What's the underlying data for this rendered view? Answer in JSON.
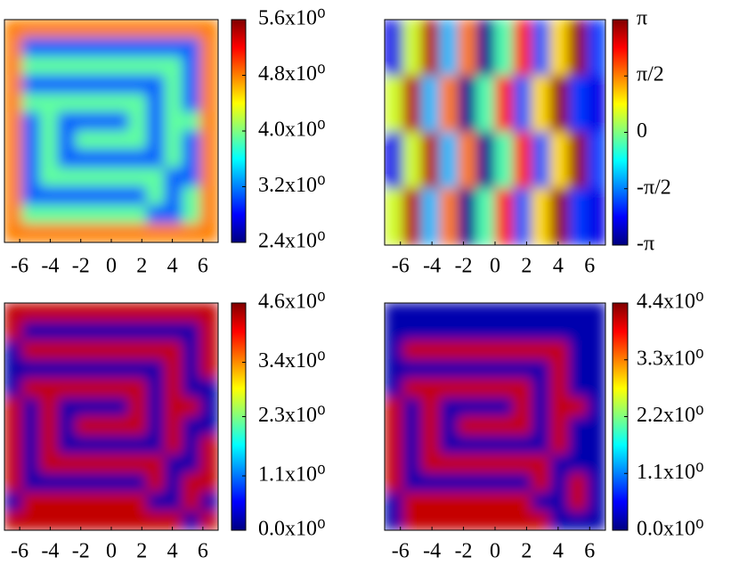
{
  "chart_data": [
    {
      "type": "heatmap",
      "xlim": [
        -7,
        7
      ],
      "xticks": [
        -6,
        -4,
        -2,
        0,
        2,
        4,
        6
      ],
      "clim": [
        2.4,
        5.6
      ],
      "cticks": [
        {
          "value": 2.4,
          "label": "2.4x10⁰"
        },
        {
          "value": 3.2,
          "label": "3.2x10⁰"
        },
        {
          "value": 4.0,
          "label": "4.0x10⁰"
        },
        {
          "value": 4.8,
          "label": "4.8x10⁰"
        },
        {
          "value": 5.6,
          "label": "5.6x10⁰"
        }
      ],
      "z": [
        [
          4.8,
          4.8,
          4.8,
          4.8,
          4.8,
          4.8,
          4.8,
          4.8,
          4.8,
          4.8,
          4.8,
          4.8
        ],
        [
          4.8,
          3.1,
          3.1,
          3.1,
          3.1,
          3.1,
          3.1,
          3.1,
          3.1,
          3.1,
          3.1,
          4.8
        ],
        [
          4.8,
          3.9,
          3.9,
          3.9,
          3.9,
          3.9,
          3.9,
          3.9,
          3.9,
          3.9,
          3.1,
          4.8
        ],
        [
          4.8,
          3.1,
          3.1,
          3.1,
          3.1,
          3.1,
          3.1,
          3.1,
          3.1,
          3.9,
          3.1,
          4.8
        ],
        [
          4.8,
          3.9,
          3.9,
          3.9,
          3.9,
          3.9,
          3.9,
          3.9,
          3.1,
          3.9,
          3.1,
          4.8
        ],
        [
          4.8,
          3.1,
          3.9,
          3.1,
          3.1,
          3.1,
          3.1,
          3.9,
          3.1,
          3.9,
          3.9,
          4.8
        ],
        [
          4.8,
          3.1,
          3.9,
          3.1,
          3.9,
          3.9,
          3.9,
          3.9,
          3.1,
          3.9,
          3.1,
          4.8
        ],
        [
          4.8,
          3.1,
          3.9,
          3.1,
          3.1,
          3.1,
          3.1,
          3.1,
          3.1,
          3.9,
          3.1,
          4.8
        ],
        [
          4.8,
          3.1,
          3.9,
          3.9,
          3.9,
          3.9,
          3.9,
          3.9,
          3.9,
          3.1,
          3.1,
          4.8
        ],
        [
          4.8,
          3.1,
          3.1,
          3.1,
          3.1,
          3.1,
          3.1,
          3.1,
          3.9,
          3.1,
          3.9,
          4.8
        ],
        [
          4.8,
          3.9,
          3.9,
          3.9,
          3.9,
          3.9,
          3.9,
          3.9,
          3.1,
          3.1,
          3.9,
          4.8
        ],
        [
          4.8,
          4.8,
          4.8,
          4.8,
          4.8,
          4.8,
          4.8,
          4.8,
          4.8,
          4.8,
          4.8,
          4.8
        ]
      ]
    },
    {
      "type": "heatmap",
      "xlim": [
        -7,
        7
      ],
      "xticks": [
        -6,
        -4,
        -2,
        0,
        2,
        4,
        6
      ],
      "clim": [
        -3.14159,
        3.14159
      ],
      "cticks": [
        {
          "value": -3.14159,
          "label": "-π"
        },
        {
          "value": -1.5708,
          "label": "-π/2"
        },
        0,
        {
          "value": 1.5708,
          "label": "π/2"
        },
        {
          "value": 3.14159,
          "label": "π"
        }
      ],
      "z": [
        [
          -2.5,
          0.5,
          2.8,
          -1.2,
          1.6,
          -3.0,
          -0.3,
          2.2,
          -1.8,
          1.0,
          3.0,
          -2.0
        ],
        [
          -2.5,
          0.5,
          2.8,
          -1.2,
          1.6,
          -3.0,
          -0.3,
          2.2,
          -1.8,
          1.0,
          3.0,
          -2.0
        ],
        [
          -2.5,
          0.5,
          2.8,
          -1.2,
          1.6,
          -3.0,
          -0.3,
          2.2,
          -1.8,
          1.0,
          3.0,
          -2.0
        ],
        [
          0.5,
          2.8,
          -1.2,
          1.6,
          -3.0,
          -0.3,
          2.2,
          -1.8,
          1.0,
          3.0,
          -2.0,
          -2.5
        ],
        [
          0.5,
          2.8,
          -1.2,
          1.6,
          -3.0,
          -0.3,
          2.2,
          -1.8,
          1.0,
          3.0,
          -2.0,
          -2.5
        ],
        [
          0.5,
          2.8,
          -1.2,
          1.6,
          -3.0,
          -0.3,
          2.2,
          -1.8,
          1.0,
          3.0,
          -2.0,
          -2.5
        ],
        [
          -2.5,
          0.5,
          2.8,
          -1.2,
          1.6,
          -3.0,
          -0.3,
          2.2,
          -1.8,
          1.0,
          3.0,
          -2.0
        ],
        [
          -2.5,
          0.5,
          2.8,
          -1.2,
          1.6,
          -3.0,
          -0.3,
          2.2,
          -1.8,
          1.0,
          3.0,
          -2.0
        ],
        [
          -2.5,
          0.5,
          2.8,
          -1.2,
          1.6,
          -3.0,
          -0.3,
          2.2,
          -1.8,
          1.0,
          3.0,
          -2.0
        ],
        [
          0.5,
          2.8,
          -1.2,
          1.6,
          -3.0,
          -0.3,
          2.2,
          -1.8,
          1.0,
          3.0,
          -2.0,
          -2.5
        ],
        [
          0.5,
          2.8,
          -1.2,
          1.6,
          -3.0,
          -0.3,
          2.2,
          -1.8,
          1.0,
          3.0,
          -2.0,
          -2.5
        ],
        [
          0.5,
          2.8,
          -1.2,
          1.6,
          -3.0,
          -0.3,
          2.2,
          -1.8,
          1.0,
          3.0,
          -2.0,
          -2.5
        ]
      ]
    },
    {
      "type": "heatmap",
      "xlim": [
        -7,
        7
      ],
      "xticks": [
        -6,
        -4,
        -2,
        0,
        2,
        4,
        6
      ],
      "clim": [
        0.0,
        4.6
      ],
      "cticks": [
        {
          "value": 0.0,
          "label": "0.0x10⁰"
        },
        {
          "value": 1.1,
          "label": "1.1x10⁰"
        },
        {
          "value": 2.3,
          "label": "2.3x10⁰"
        },
        {
          "value": 3.4,
          "label": "3.4x10⁰"
        },
        {
          "value": 4.6,
          "label": "4.6x10⁰"
        }
      ],
      "z": [
        [
          4.3,
          4.3,
          4.3,
          4.3,
          4.3,
          4.3,
          4.3,
          4.3,
          4.3,
          4.3,
          4.3,
          4.3
        ],
        [
          4.3,
          0.2,
          0.2,
          0.2,
          0.2,
          0.2,
          0.2,
          0.2,
          0.2,
          0.2,
          0.2,
          4.3
        ],
        [
          0.2,
          4.3,
          4.3,
          4.3,
          4.3,
          4.3,
          4.3,
          4.3,
          4.3,
          4.3,
          0.2,
          4.3
        ],
        [
          0.2,
          0.2,
          0.2,
          0.2,
          0.2,
          0.2,
          0.2,
          0.2,
          0.2,
          4.3,
          0.2,
          4.3
        ],
        [
          0.2,
          4.3,
          4.3,
          4.3,
          4.3,
          4.3,
          4.3,
          4.3,
          0.2,
          4.3,
          0.2,
          0.2
        ],
        [
          4.3,
          0.2,
          4.3,
          0.2,
          0.2,
          0.2,
          0.2,
          4.3,
          0.2,
          4.3,
          4.3,
          0.2
        ],
        [
          4.3,
          0.2,
          4.3,
          0.2,
          4.3,
          4.3,
          4.3,
          4.3,
          0.2,
          4.3,
          0.2,
          0.2
        ],
        [
          4.3,
          0.2,
          4.3,
          0.2,
          0.2,
          0.2,
          0.2,
          0.2,
          0.2,
          4.3,
          0.2,
          4.3
        ],
        [
          4.3,
          0.2,
          4.3,
          4.3,
          4.3,
          4.3,
          4.3,
          4.3,
          4.3,
          0.2,
          0.2,
          4.3
        ],
        [
          4.3,
          0.2,
          0.2,
          0.2,
          0.2,
          0.2,
          0.2,
          0.2,
          4.3,
          0.2,
          4.3,
          4.3
        ],
        [
          0.2,
          4.3,
          4.3,
          4.3,
          4.3,
          4.3,
          4.3,
          4.3,
          0.2,
          0.2,
          4.3,
          0.2
        ],
        [
          4.3,
          4.3,
          4.3,
          4.3,
          4.3,
          4.3,
          4.3,
          4.3,
          4.3,
          4.3,
          0.2,
          4.3
        ]
      ]
    },
    {
      "type": "heatmap",
      "xlim": [
        -7,
        7
      ],
      "xticks": [
        -6,
        -4,
        -2,
        0,
        2,
        4,
        6
      ],
      "clim": [
        0.0,
        4.4
      ],
      "cticks": [
        {
          "value": 0.0,
          "label": "0.0x10⁰"
        },
        {
          "value": 1.1,
          "label": "1.1x10⁰"
        },
        {
          "value": 2.2,
          "label": "2.2x10⁰"
        },
        {
          "value": 3.3,
          "label": "3.3x10⁰"
        },
        {
          "value": 4.4,
          "label": "4.4x10⁰"
        }
      ],
      "z": [
        [
          0.2,
          0.2,
          0.2,
          0.2,
          0.2,
          0.2,
          0.2,
          0.2,
          0.2,
          0.2,
          0.2,
          0.2
        ],
        [
          0.2,
          0.2,
          0.2,
          0.2,
          0.2,
          0.2,
          0.2,
          0.2,
          0.2,
          0.2,
          0.2,
          0.2
        ],
        [
          0.2,
          4.1,
          4.1,
          4.1,
          4.1,
          4.1,
          4.1,
          4.1,
          4.1,
          4.1,
          0.2,
          0.2
        ],
        [
          0.2,
          0.2,
          0.2,
          0.2,
          0.2,
          0.2,
          0.2,
          0.2,
          0.2,
          4.1,
          0.2,
          0.2
        ],
        [
          0.2,
          4.1,
          4.1,
          4.1,
          4.1,
          4.1,
          4.1,
          4.1,
          0.2,
          4.1,
          0.2,
          0.2
        ],
        [
          4.1,
          0.2,
          4.1,
          0.2,
          0.2,
          0.2,
          0.2,
          4.1,
          0.2,
          4.1,
          4.1,
          0.2
        ],
        [
          4.1,
          0.2,
          4.1,
          0.2,
          4.1,
          4.1,
          4.1,
          4.1,
          0.2,
          4.1,
          0.2,
          0.2
        ],
        [
          4.1,
          0.2,
          4.1,
          0.2,
          0.2,
          0.2,
          0.2,
          0.2,
          0.2,
          4.1,
          0.2,
          0.2
        ],
        [
          4.1,
          0.2,
          4.1,
          4.1,
          4.1,
          4.1,
          4.1,
          4.1,
          4.1,
          0.2,
          0.2,
          0.2
        ],
        [
          4.1,
          0.2,
          0.2,
          0.2,
          0.2,
          0.2,
          0.2,
          0.2,
          4.1,
          0.2,
          4.1,
          0.2
        ],
        [
          0.2,
          4.1,
          4.1,
          4.1,
          4.1,
          4.1,
          4.1,
          4.1,
          0.2,
          0.2,
          4.1,
          0.2
        ],
        [
          0.2,
          4.1,
          4.1,
          4.1,
          4.1,
          4.1,
          4.1,
          4.1,
          4.1,
          0.2,
          0.2,
          0.2
        ]
      ]
    }
  ]
}
